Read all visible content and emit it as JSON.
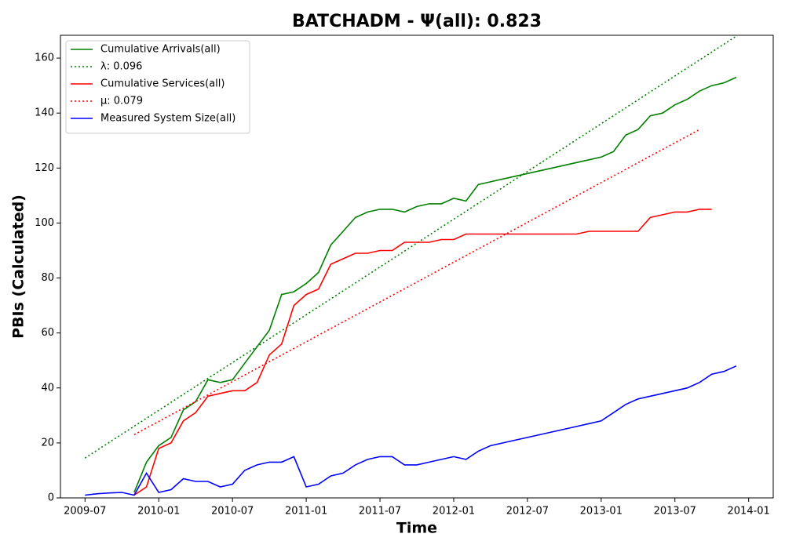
{
  "chart_data": {
    "type": "line",
    "title": "BATCHADM -  Ψ(all): 0.823",
    "xlabel": "Time",
    "ylabel": "PBIs (Calculated)",
    "x": [
      "2009-07",
      "2009-08",
      "2009-09",
      "2009-10",
      "2009-11",
      "2009-12",
      "2010-01",
      "2010-02",
      "2010-03",
      "2010-04",
      "2010-05",
      "2010-06",
      "2010-07",
      "2010-08",
      "2010-09",
      "2010-10",
      "2010-11",
      "2010-12",
      "2011-01",
      "2011-02",
      "2011-03",
      "2011-04",
      "2011-05",
      "2011-06",
      "2011-07",
      "2011-08",
      "2011-09",
      "2011-10",
      "2011-11",
      "2011-12",
      "2012-01",
      "2012-02",
      "2012-03",
      "2012-04",
      "2012-05",
      "2012-06",
      "2012-07",
      "2012-08",
      "2012-09",
      "2012-10",
      "2012-11",
      "2012-12",
      "2013-01",
      "2013-02",
      "2013-03",
      "2013-04",
      "2013-05",
      "2013-06",
      "2013-07",
      "2013-08",
      "2013-09",
      "2013-10",
      "2013-11",
      "2013-12"
    ],
    "series": [
      {
        "name": "Cumulative Arrivals(all)",
        "color": "#008000",
        "style": "solid",
        "values": [
          null,
          null,
          null,
          null,
          2,
          13,
          19,
          22,
          32,
          35,
          43,
          42,
          43,
          49,
          55,
          61,
          74,
          75,
          78,
          82,
          92,
          97,
          102,
          104,
          105,
          105,
          104,
          106,
          107,
          107,
          109,
          108,
          114,
          115,
          116,
          117,
          118,
          119,
          120,
          121,
          122,
          123,
          124,
          126,
          132,
          134,
          139,
          140,
          143,
          145,
          148,
          150,
          151,
          153
        ]
      },
      {
        "name": "λ: 0.096",
        "color": "#008000",
        "style": "dotted",
        "x": [
          "2009-07",
          "2013-12"
        ],
        "values": [
          14.5,
          168
        ]
      },
      {
        "name": "Cumulative Services(all)",
        "color": "#ff0000",
        "style": "solid",
        "values": [
          null,
          null,
          null,
          null,
          1,
          4,
          18,
          20,
          28,
          31,
          37,
          38,
          39,
          39,
          42,
          52,
          56,
          70,
          74,
          76,
          85,
          87,
          89,
          89,
          90,
          90,
          93,
          93,
          93,
          94,
          94,
          96,
          96,
          96,
          96,
          96,
          96,
          96,
          96,
          96,
          96,
          97,
          97,
          97,
          97,
          97,
          102,
          103,
          104,
          104,
          105,
          105,
          null,
          null
        ]
      },
      {
        "name": "μ: 0.079",
        "color": "#ff0000",
        "style": "dotted",
        "x": [
          "2009-11",
          "2013-09"
        ],
        "values": [
          23,
          134
        ]
      },
      {
        "name": "Measured System Size(all)",
        "color": "#0000ff",
        "style": "solid",
        "values": [
          1,
          1.5,
          1.8,
          2,
          1,
          9,
          2,
          3,
          7,
          6,
          6,
          4,
          5,
          10,
          12,
          13,
          13,
          15,
          4,
          5,
          8,
          9,
          12,
          14,
          15,
          15,
          12,
          12,
          13,
          14,
          15,
          14,
          17,
          19,
          20,
          21,
          22,
          23,
          24,
          25,
          26,
          27,
          28,
          31,
          34,
          36,
          37,
          38,
          39,
          40,
          42,
          45,
          46,
          48
        ]
      }
    ],
    "xlim": [
      "2009-05",
      "2014-03"
    ],
    "xticks": [
      "2009-07",
      "2010-01",
      "2010-07",
      "2011-01",
      "2011-07",
      "2012-01",
      "2012-07",
      "2013-01",
      "2013-07",
      "2014-01"
    ],
    "ylim": [
      0,
      168.3
    ],
    "yticks": [
      0,
      20,
      40,
      60,
      80,
      100,
      120,
      140,
      160
    ],
    "legend": "upper left"
  }
}
